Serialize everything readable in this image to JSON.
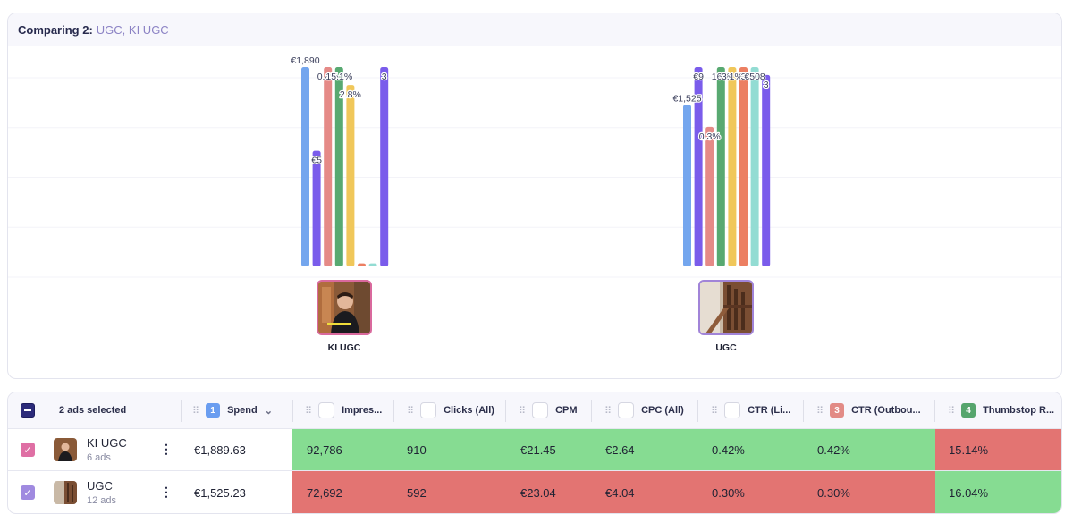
{
  "header": {
    "prefix": "Comparing 2:",
    "groups": "UGC, KI UGC"
  },
  "chart_data": {
    "type": "bar",
    "series_colors": [
      "#74a6ee",
      "#7a5ceb",
      "#e58a87",
      "#58a971",
      "#f0c75a",
      "#ec7f62",
      "#93dcd3",
      "#7a5ceb"
    ],
    "groups": [
      {
        "name": "KI UGC",
        "values": [
          100,
          58,
          100,
          100,
          91,
          1.5,
          1.5,
          100
        ],
        "labels": [
          "€1,890",
          "€5",
          "0.4%",
          "15.1%",
          "2.8%",
          "",
          "",
          "3"
        ]
      },
      {
        "name": "UGC",
        "values": [
          81,
          100,
          70,
          100,
          100,
          100,
          100,
          96
        ],
        "labels": [
          "€1,525",
          "€9",
          "0.3%",
          "16%",
          "3.1%",
          "3",
          "€508",
          "3"
        ]
      }
    ]
  },
  "table": {
    "select_all_label": "2 ads selected",
    "columns": [
      {
        "label": "Spend",
        "badge": "1",
        "badge_color": "#6a9df0",
        "sort": "⌄"
      },
      {
        "label": "Impres..."
      },
      {
        "label": "Clicks (All)"
      },
      {
        "label": "CPM"
      },
      {
        "label": "CPC (All)"
      },
      {
        "label": "CTR (Li..."
      },
      {
        "label": "CTR (Outbou...",
        "badge": "3",
        "badge_color": "#e28b86"
      },
      {
        "label": "Thumbstop R...",
        "badge": "4",
        "badge_color": "#56a56d"
      }
    ],
    "rows": [
      {
        "name": "KI UGC",
        "sub": "6 ads",
        "check_color": "#df6fa4",
        "spend": "€1,889.63",
        "impressions": "92,786",
        "clicks": "910",
        "cpm": "€21.45",
        "cpc": "€2.64",
        "ctr_link": "0.42%",
        "ctr_out": "0.42%",
        "thumbstop": "15.14%",
        "perf_color": "#86dc92",
        "thumb_color": "#e37472"
      },
      {
        "name": "UGC",
        "sub": "12 ads",
        "check_color": "#a08ae0",
        "spend": "€1,525.23",
        "impressions": "72,692",
        "clicks": "592",
        "cpm": "€23.04",
        "cpc": "€4.04",
        "ctr_link": "0.30%",
        "ctr_out": "0.30%",
        "thumbstop": "16.04%",
        "perf_color": "#e37472",
        "thumb_color": "#86dc92"
      }
    ]
  }
}
